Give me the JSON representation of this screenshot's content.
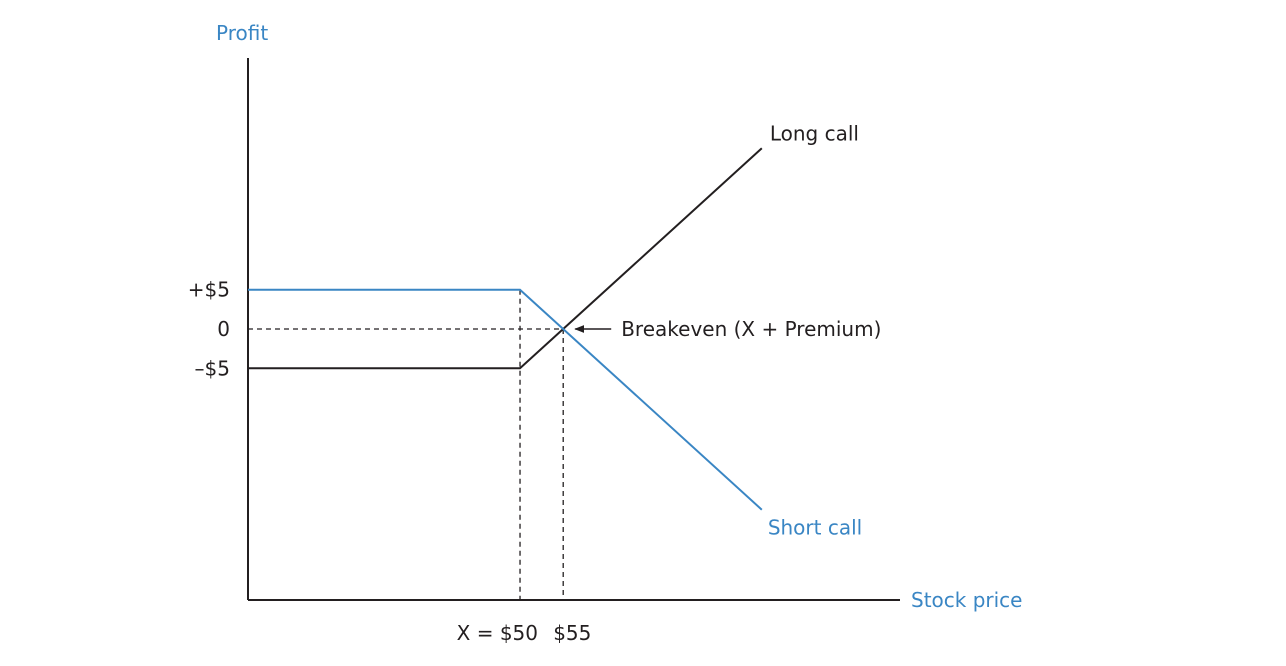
{
  "chart_data": {
    "type": "line",
    "ylabel": "Profit",
    "xlabel": "Stock price",
    "y_tick_labels": [
      {
        "value": 5,
        "label": "+$5"
      },
      {
        "value": 0,
        "label": "0"
      },
      {
        "value": -5,
        "label": "–$5"
      }
    ],
    "x_tick_labels": [
      {
        "value": 50,
        "label": "X = $50"
      },
      {
        "value": 55,
        "label": "$55"
      }
    ],
    "xlim": [
      18.5,
      94
    ],
    "ylim": [
      -34.5,
      34.5
    ],
    "series": [
      {
        "name": "Long call",
        "color": "#231f20",
        "points": [
          [
            18.5,
            -5
          ],
          [
            50,
            -5
          ],
          [
            78,
            23
          ]
        ]
      },
      {
        "name": "Short call",
        "color": "#3a86c4",
        "points": [
          [
            18.5,
            5
          ],
          [
            50,
            5
          ],
          [
            78,
            -23
          ]
        ]
      }
    ],
    "breakeven": {
      "x": 55,
      "y": 0
    },
    "annotations": [
      {
        "text": "Breakeven (X + Premium)",
        "x": 55,
        "y": 0
      }
    ]
  }
}
